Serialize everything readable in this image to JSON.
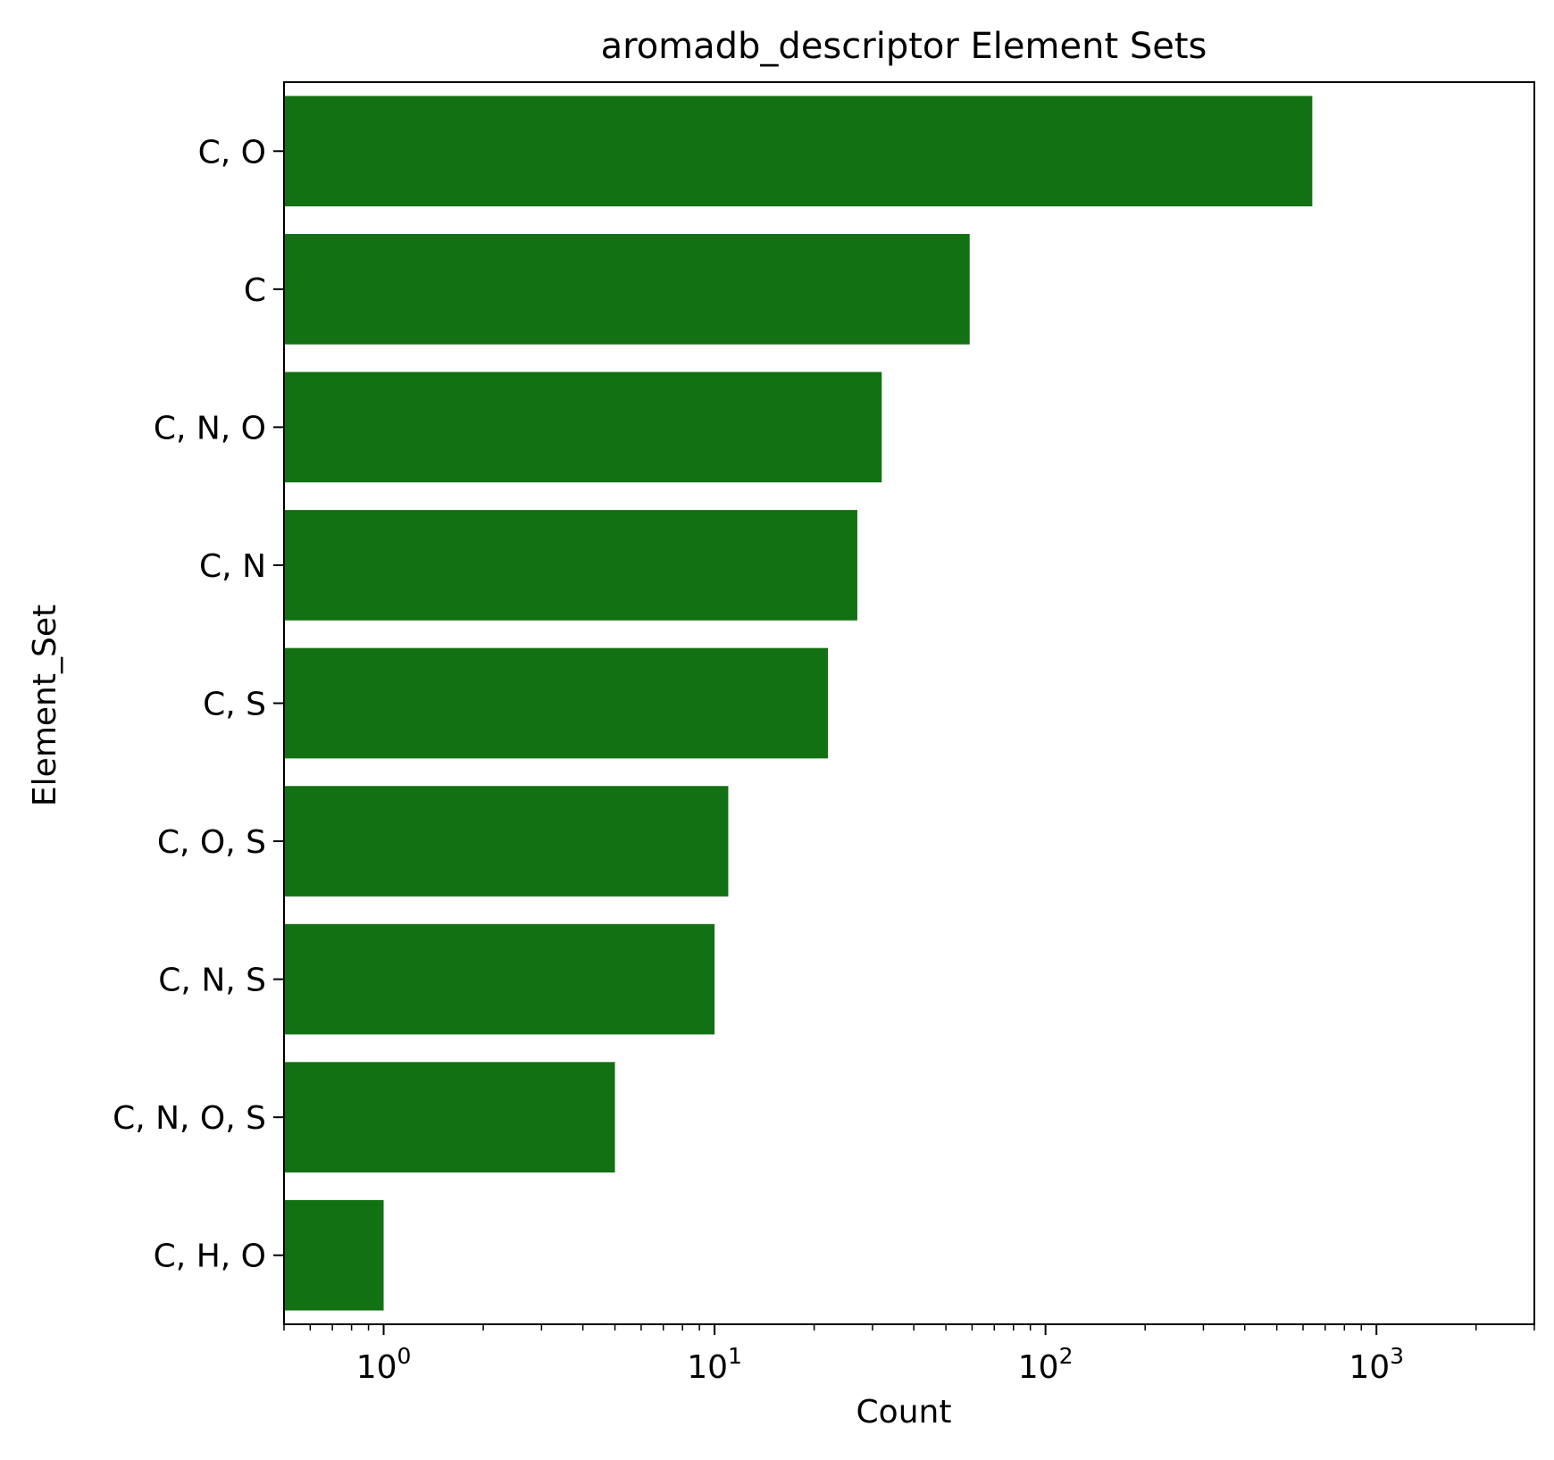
{
  "chart_data": {
    "type": "bar",
    "orientation": "horizontal",
    "title": "aromadb_descriptor Element Sets",
    "xlabel": "Count",
    "ylabel": "Element_Set",
    "x_scale": "log",
    "xlim": [
      0.5,
      3000
    ],
    "x_ticks": [
      {
        "base": "10",
        "exp": "0",
        "value": 1
      },
      {
        "base": "10",
        "exp": "1",
        "value": 10
      },
      {
        "base": "10",
        "exp": "2",
        "value": 100
      },
      {
        "base": "10",
        "exp": "3",
        "value": 1000
      }
    ],
    "categories": [
      "C, O",
      "C",
      "C, N, O",
      "C, N",
      "C, S",
      "C, O, S",
      "C, N, S",
      "C, N, O, S",
      "C, H, O"
    ],
    "values": [
      640,
      59,
      32,
      27,
      22,
      11,
      10,
      5,
      1
    ],
    "bar_color": "#127112",
    "grid": false,
    "legend": "none"
  }
}
